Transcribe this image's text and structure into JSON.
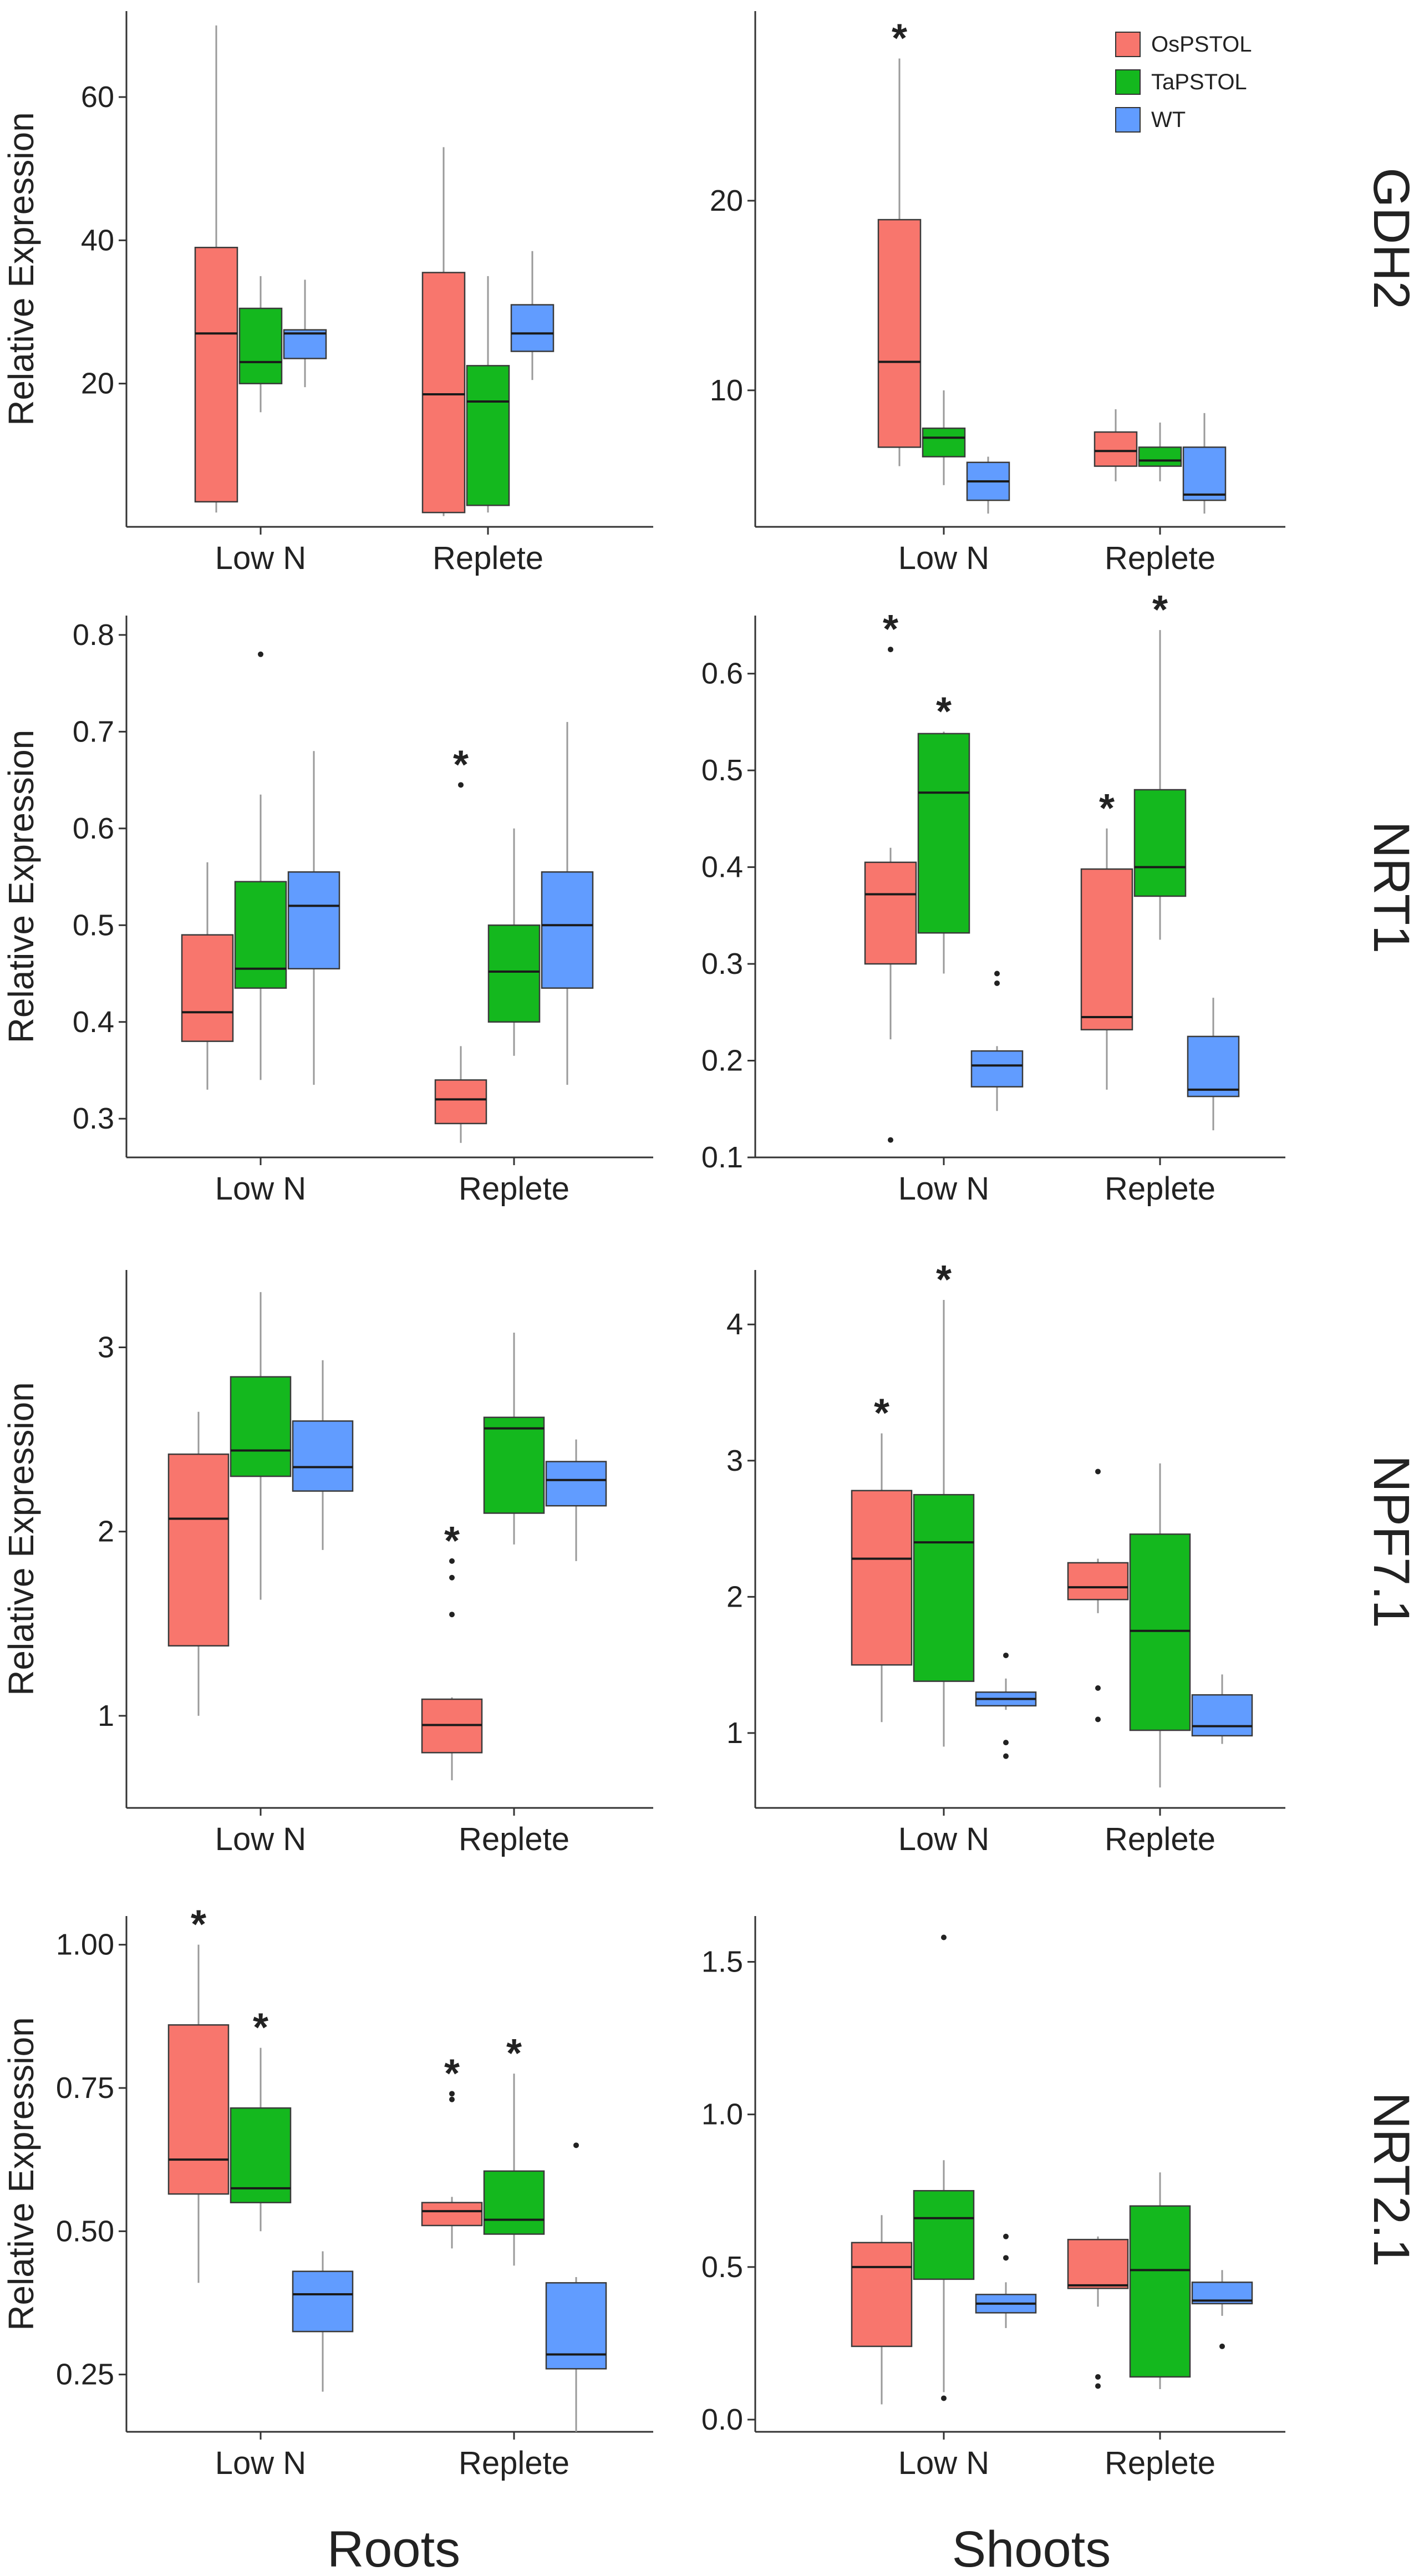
{
  "colors": {
    "OsPSTOL": "#F8766D",
    "TaPSTOL": "#14B81E",
    "WT": "#619CFF",
    "median": "#1a1a1a",
    "whisker": "#9a9a9a",
    "axis": "#333333"
  },
  "legend": {
    "placement": "top-right",
    "items": [
      "OsPSTOL",
      "TaPSTOL",
      "WT"
    ]
  },
  "column_labels": [
    "Roots",
    "Shoots"
  ],
  "row_labels": [
    "GDH2",
    "NRT1",
    "NPF7.1",
    "NRT2.1"
  ],
  "chart_data": [
    {
      "type": "boxplot",
      "gene": "GDH2",
      "tissue": "Roots",
      "ylabel": "Relative Expression",
      "categories": [
        "Low N",
        "Replete"
      ],
      "ylim": [
        0,
        72
      ],
      "yticks": [
        "20",
        "40",
        "60"
      ],
      "ytick_values": [
        20,
        40,
        60
      ],
      "boxes": [
        {
          "group": "Low N",
          "series": "OsPSTOL",
          "low": 2,
          "q1": 3.5,
          "median": 27,
          "q3": 39,
          "high": 70,
          "outliers": [],
          "sig": false
        },
        {
          "group": "Low N",
          "series": "TaPSTOL",
          "low": 16,
          "q1": 20,
          "median": 23,
          "q3": 30.5,
          "high": 35,
          "outliers": [],
          "sig": false
        },
        {
          "group": "Low N",
          "series": "WT",
          "low": 19.5,
          "q1": 23.5,
          "median": 27,
          "q3": 27.5,
          "high": 34.5,
          "outliers": [],
          "sig": false
        },
        {
          "group": "Replete",
          "series": "OsPSTOL",
          "low": 1.5,
          "q1": 2,
          "median": 18.5,
          "q3": 35.5,
          "high": 53,
          "outliers": [],
          "sig": false
        },
        {
          "group": "Replete",
          "series": "TaPSTOL",
          "low": 2,
          "q1": 3,
          "median": 17.5,
          "q3": 22.5,
          "high": 35,
          "outliers": [],
          "sig": false
        },
        {
          "group": "Replete",
          "series": "WT",
          "low": 20.5,
          "q1": 24.5,
          "median": 27,
          "q3": 31,
          "high": 38.5,
          "outliers": [],
          "sig": false
        }
      ]
    },
    {
      "type": "boxplot",
      "gene": "GDH2",
      "tissue": "Shoots",
      "ylabel": "",
      "categories": [
        "Low N",
        "Replete"
      ],
      "ylim": [
        2.8,
        30
      ],
      "yticks": [
        "10",
        "20"
      ],
      "ytick_values": [
        10,
        20
      ],
      "boxes": [
        {
          "group": "Low N",
          "series": "OsPSTOL",
          "low": 6,
          "q1": 7,
          "median": 11.5,
          "q3": 19,
          "high": 27.5,
          "outliers": [],
          "sig": true
        },
        {
          "group": "Low N",
          "series": "TaPSTOL",
          "low": 5,
          "q1": 6.5,
          "median": 7.5,
          "q3": 8,
          "high": 10,
          "outliers": [],
          "sig": false
        },
        {
          "group": "Low N",
          "series": "WT",
          "low": 3.5,
          "q1": 4.2,
          "median": 5.2,
          "q3": 6.2,
          "high": 6.5,
          "outliers": [],
          "sig": false
        },
        {
          "group": "Replete",
          "series": "OsPSTOL",
          "low": 5.2,
          "q1": 6,
          "median": 6.8,
          "q3": 7.8,
          "high": 9,
          "outliers": [],
          "sig": false
        },
        {
          "group": "Replete",
          "series": "TaPSTOL",
          "low": 5.2,
          "q1": 6,
          "median": 6.3,
          "q3": 7,
          "high": 8.3,
          "outliers": [],
          "sig": false
        },
        {
          "group": "Replete",
          "series": "WT",
          "low": 3.5,
          "q1": 4.2,
          "median": 4.5,
          "q3": 7,
          "high": 8.8,
          "outliers": [],
          "sig": false
        }
      ]
    },
    {
      "type": "boxplot",
      "gene": "NRT1",
      "tissue": "Roots",
      "ylabel": "Relative Expression",
      "categories": [
        "Low N",
        "Replete"
      ],
      "ylim": [
        0.26,
        0.82
      ],
      "yticks": [
        "0.3",
        "0.4",
        "0.5",
        "0.6",
        "0.7",
        "0.8"
      ],
      "ytick_values": [
        0.3,
        0.4,
        0.5,
        0.6,
        0.7,
        0.8
      ],
      "boxes": [
        {
          "group": "Low N",
          "series": "OsPSTOL",
          "low": 0.33,
          "q1": 0.38,
          "median": 0.41,
          "q3": 0.49,
          "high": 0.565,
          "outliers": [],
          "sig": false
        },
        {
          "group": "Low N",
          "series": "TaPSTOL",
          "low": 0.34,
          "q1": 0.435,
          "median": 0.455,
          "q3": 0.545,
          "high": 0.635,
          "outliers": [
            0.78
          ],
          "sig": false
        },
        {
          "group": "Low N",
          "series": "WT",
          "low": 0.335,
          "q1": 0.455,
          "median": 0.52,
          "q3": 0.555,
          "high": 0.68,
          "outliers": [],
          "sig": false
        },
        {
          "group": "Replete",
          "series": "OsPSTOL",
          "low": 0.275,
          "q1": 0.295,
          "median": 0.32,
          "q3": 0.34,
          "high": 0.375,
          "outliers": [
            0.645
          ],
          "sig": true
        },
        {
          "group": "Replete",
          "series": "TaPSTOL",
          "low": 0.365,
          "q1": 0.4,
          "median": 0.452,
          "q3": 0.5,
          "high": 0.6,
          "outliers": [],
          "sig": false
        },
        {
          "group": "Replete",
          "series": "WT",
          "low": 0.335,
          "q1": 0.435,
          "median": 0.5,
          "q3": 0.555,
          "high": 0.71,
          "outliers": [],
          "sig": false
        }
      ]
    },
    {
      "type": "boxplot",
      "gene": "NRT1",
      "tissue": "Shoots",
      "ylabel": "",
      "categories": [
        "Low N",
        "Replete"
      ],
      "ylim": [
        0.1,
        0.66
      ],
      "yticks": [
        "0.1",
        "0.2",
        "0.3",
        "0.4",
        "0.5",
        "0.6"
      ],
      "ytick_values": [
        0.1,
        0.2,
        0.3,
        0.4,
        0.5,
        0.6
      ],
      "boxes": [
        {
          "group": "Low N",
          "series": "OsPSTOL",
          "low": 0.222,
          "q1": 0.3,
          "median": 0.372,
          "q3": 0.405,
          "high": 0.42,
          "outliers": [
            0.625,
            0.118
          ],
          "sig": true
        },
        {
          "group": "Low N",
          "series": "TaPSTOL",
          "low": 0.29,
          "q1": 0.332,
          "median": 0.477,
          "q3": 0.538,
          "high": 0.54,
          "outliers": [],
          "sig": true
        },
        {
          "group": "Low N",
          "series": "WT",
          "low": 0.148,
          "q1": 0.173,
          "median": 0.195,
          "q3": 0.21,
          "high": 0.215,
          "outliers": [
            0.28,
            0.29
          ],
          "sig": false
        },
        {
          "group": "Replete",
          "series": "OsPSTOL",
          "low": 0.17,
          "q1": 0.232,
          "median": 0.245,
          "q3": 0.398,
          "high": 0.44,
          "outliers": [],
          "sig": true
        },
        {
          "group": "Replete",
          "series": "TaPSTOL",
          "low": 0.325,
          "q1": 0.37,
          "median": 0.4,
          "q3": 0.48,
          "high": 0.645,
          "outliers": [],
          "sig": true
        },
        {
          "group": "Replete",
          "series": "WT",
          "low": 0.128,
          "q1": 0.163,
          "median": 0.17,
          "q3": 0.225,
          "high": 0.265,
          "outliers": [],
          "sig": false
        }
      ]
    },
    {
      "type": "boxplot",
      "gene": "NPF7.1",
      "tissue": "Roots",
      "ylabel": "Relative Expression",
      "categories": [
        "Low N",
        "Replete"
      ],
      "ylim": [
        0.5,
        3.42
      ],
      "yticks": [
        "1",
        "2",
        "3"
      ],
      "ytick_values": [
        1,
        2,
        3
      ],
      "boxes": [
        {
          "group": "Low N",
          "series": "OsPSTOL",
          "low": 1.0,
          "q1": 1.38,
          "median": 2.07,
          "q3": 2.42,
          "high": 2.65,
          "outliers": [],
          "sig": false
        },
        {
          "group": "Low N",
          "series": "TaPSTOL",
          "low": 1.63,
          "q1": 2.3,
          "median": 2.44,
          "q3": 2.84,
          "high": 3.3,
          "outliers": [],
          "sig": false
        },
        {
          "group": "Low N",
          "series": "WT",
          "low": 1.9,
          "q1": 2.22,
          "median": 2.35,
          "q3": 2.6,
          "high": 2.93,
          "outliers": [],
          "sig": false
        },
        {
          "group": "Replete",
          "series": "OsPSTOL",
          "low": 0.65,
          "q1": 0.8,
          "median": 0.95,
          "q3": 1.09,
          "high": 1.1,
          "outliers": [
            1.55,
            1.75,
            1.84
          ],
          "sig": true
        },
        {
          "group": "Replete",
          "series": "TaPSTOL",
          "low": 1.93,
          "q1": 2.1,
          "median": 2.56,
          "q3": 2.62,
          "high": 3.08,
          "outliers": [],
          "sig": false
        },
        {
          "group": "Replete",
          "series": "WT",
          "low": 1.84,
          "q1": 2.14,
          "median": 2.28,
          "q3": 2.38,
          "high": 2.5,
          "outliers": [],
          "sig": false
        }
      ]
    },
    {
      "type": "boxplot",
      "gene": "NPF7.1",
      "tissue": "Shoots",
      "ylabel": "",
      "categories": [
        "Low N",
        "Replete"
      ],
      "ylim": [
        0.45,
        4.4
      ],
      "yticks": [
        "1",
        "2",
        "3",
        "4"
      ],
      "ytick_values": [
        1,
        2,
        3,
        4
      ],
      "boxes": [
        {
          "group": "Low N",
          "series": "OsPSTOL",
          "low": 1.08,
          "q1": 1.5,
          "median": 2.28,
          "q3": 2.78,
          "high": 3.2,
          "outliers": [],
          "sig": true
        },
        {
          "group": "Low N",
          "series": "TaPSTOL",
          "low": 0.9,
          "q1": 1.38,
          "median": 2.4,
          "q3": 2.75,
          "high": 4.18,
          "outliers": [],
          "sig": true
        },
        {
          "group": "Low N",
          "series": "WT",
          "low": 1.17,
          "q1": 1.2,
          "median": 1.25,
          "q3": 1.3,
          "high": 1.4,
          "outliers": [
            1.57,
            0.93,
            0.83
          ],
          "sig": false
        },
        {
          "group": "Replete",
          "series": "OsPSTOL",
          "low": 1.88,
          "q1": 1.98,
          "median": 2.07,
          "q3": 2.25,
          "high": 2.28,
          "outliers": [
            2.92,
            1.33,
            1.1
          ],
          "sig": false
        },
        {
          "group": "Replete",
          "series": "TaPSTOL",
          "low": 0.6,
          "q1": 1.02,
          "median": 1.75,
          "q3": 2.46,
          "high": 2.98,
          "outliers": [],
          "sig": false
        },
        {
          "group": "Replete",
          "series": "WT",
          "low": 0.92,
          "q1": 0.98,
          "median": 1.05,
          "q3": 1.28,
          "high": 1.43,
          "outliers": [],
          "sig": false
        }
      ]
    },
    {
      "type": "boxplot",
      "gene": "NRT2.1",
      "tissue": "Roots",
      "ylabel": "Relative Expression",
      "categories": [
        "Low N",
        "Replete"
      ],
      "ylim": [
        0.15,
        1.05
      ],
      "yticks": [
        "0.25",
        "0.50",
        "0.75",
        "1.00"
      ],
      "ytick_values": [
        0.25,
        0.5,
        0.75,
        1.0
      ],
      "boxes": [
        {
          "group": "Low N",
          "series": "OsPSTOL",
          "low": 0.41,
          "q1": 0.565,
          "median": 0.625,
          "q3": 0.86,
          "high": 1.0,
          "outliers": [],
          "sig": true
        },
        {
          "group": "Low N",
          "series": "TaPSTOL",
          "low": 0.5,
          "q1": 0.55,
          "median": 0.575,
          "q3": 0.715,
          "high": 0.82,
          "outliers": [],
          "sig": true
        },
        {
          "group": "Low N",
          "series": "WT",
          "low": 0.22,
          "q1": 0.325,
          "median": 0.39,
          "q3": 0.43,
          "high": 0.465,
          "outliers": [],
          "sig": false
        },
        {
          "group": "Replete",
          "series": "OsPSTOL",
          "low": 0.47,
          "q1": 0.51,
          "median": 0.535,
          "q3": 0.55,
          "high": 0.56,
          "outliers": [
            0.73,
            0.74
          ],
          "sig": true
        },
        {
          "group": "Replete",
          "series": "TaPSTOL",
          "low": 0.44,
          "q1": 0.495,
          "median": 0.52,
          "q3": 0.605,
          "high": 0.775,
          "outliers": [],
          "sig": true
        },
        {
          "group": "Replete",
          "series": "WT",
          "low": 0.15,
          "q1": 0.26,
          "median": 0.285,
          "q3": 0.41,
          "high": 0.42,
          "outliers": [
            0.65
          ],
          "sig": false
        }
      ]
    },
    {
      "type": "boxplot",
      "gene": "NRT2.1",
      "tissue": "Shoots",
      "ylabel": "",
      "categories": [
        "Low N",
        "Replete"
      ],
      "ylim": [
        -0.04,
        1.65
      ],
      "yticks": [
        "0.0",
        "0.5",
        "1.0",
        "1.5"
      ],
      "ytick_values": [
        0,
        0.5,
        1.0,
        1.5
      ],
      "boxes": [
        {
          "group": "Low N",
          "series": "OsPSTOL",
          "low": 0.05,
          "q1": 0.24,
          "median": 0.5,
          "q3": 0.58,
          "high": 0.67,
          "outliers": [],
          "sig": false
        },
        {
          "group": "Low N",
          "series": "TaPSTOL",
          "low": 0.09,
          "q1": 0.46,
          "median": 0.66,
          "q3": 0.75,
          "high": 0.85,
          "outliers": [
            1.58,
            0.07
          ],
          "sig": false
        },
        {
          "group": "Low N",
          "series": "WT",
          "low": 0.3,
          "q1": 0.35,
          "median": 0.38,
          "q3": 0.41,
          "high": 0.45,
          "outliers": [
            0.6,
            0.53
          ],
          "sig": false
        },
        {
          "group": "Replete",
          "series": "OsPSTOL",
          "low": 0.37,
          "q1": 0.43,
          "median": 0.44,
          "q3": 0.59,
          "high": 0.6,
          "outliers": [
            0.14,
            0.11
          ],
          "sig": false
        },
        {
          "group": "Replete",
          "series": "TaPSTOL",
          "low": 0.1,
          "q1": 0.14,
          "median": 0.49,
          "q3": 0.7,
          "high": 0.81,
          "outliers": [],
          "sig": false
        },
        {
          "group": "Replete",
          "series": "WT",
          "low": 0.34,
          "q1": 0.38,
          "median": 0.39,
          "q3": 0.45,
          "high": 0.49,
          "outliers": [
            0.24
          ],
          "sig": false
        }
      ]
    }
  ]
}
